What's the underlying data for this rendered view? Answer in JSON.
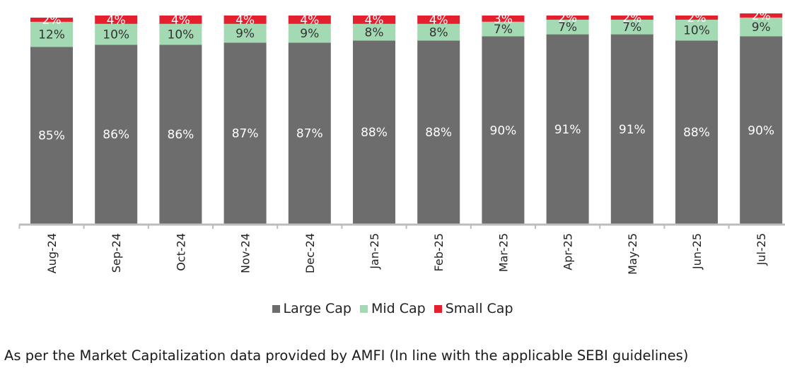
{
  "chart_data": {
    "type": "bar",
    "stacked": true,
    "categories": [
      "Aug-24",
      "Sep-24",
      "Oct-24",
      "Nov-24",
      "Dec-24",
      "Jan-25",
      "Feb-25",
      "Mar-25",
      "Apr-25",
      "May-25",
      "Jun-25",
      "Jul-25"
    ],
    "series": [
      {
        "name": "Large Cap",
        "color": "#6d6d6d",
        "values": [
          85,
          86,
          86,
          87,
          87,
          88,
          88,
          90,
          91,
          91,
          88,
          90
        ],
        "labels": [
          "85%",
          "86%",
          "86%",
          "87%",
          "87%",
          "88%",
          "88%",
          "90%",
          "91%",
          "91%",
          "88%",
          "90%"
        ]
      },
      {
        "name": "Mid Cap",
        "color": "#a3d9b3",
        "values": [
          12,
          10,
          10,
          9,
          9,
          8,
          8,
          7,
          7,
          7,
          10,
          9
        ],
        "labels": [
          "12%",
          "10%",
          "10%",
          "9%",
          "9%",
          "8%",
          "8%",
          "7%",
          "7%",
          "7%",
          "10%",
          "9%"
        ]
      },
      {
        "name": "Small Cap",
        "color": "#e4202e",
        "values": [
          2,
          4,
          4,
          4,
          4,
          4,
          4,
          3,
          2,
          2,
          2,
          2
        ],
        "labels": [
          "2%",
          "4%",
          "4%",
          "4%",
          "4%",
          "4%",
          "4%",
          "3%",
          "2%",
          "2%",
          "2%",
          "2%"
        ]
      }
    ],
    "ylim": [
      0,
      100
    ],
    "grid": false,
    "legend_position": "bottom",
    "title": "",
    "xlabel": "",
    "ylabel": ""
  },
  "footnote": "As per the Market Capitalization data provided by AMFI (In line with the applicable SEBI guidelines)"
}
